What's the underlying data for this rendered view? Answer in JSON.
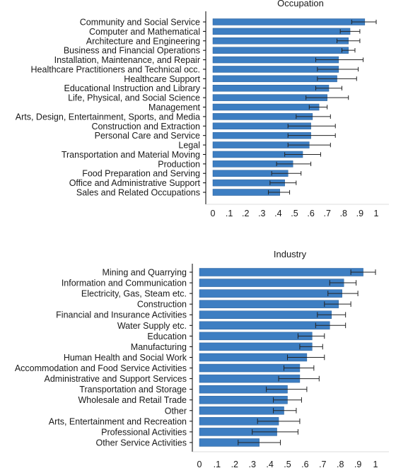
{
  "bar_color": "#3d7ec2",
  "chart_data": [
    {
      "type": "bar",
      "orientation": "horizontal",
      "title": "Occupation",
      "xlim": [
        0,
        1
      ],
      "xticks": [
        "0",
        ".1",
        ".2",
        ".3",
        ".4",
        ".5",
        ".6",
        ".7",
        ".8",
        ".9",
        "1"
      ],
      "categories": [
        "Community and Social Service",
        "Computer and Mathematical",
        "Architecture and Engineering",
        "Business and Financial Operations",
        "Installation, Maintenance, and Repair",
        "Healthcare Practitioners and Technical occ.",
        "Healthcare Support",
        "Educational Instruction and Library",
        "Life, Physical, and Social Science",
        "Management",
        "Arts, Design, Entertainment, Sports, and Media",
        "Construction and Extraction",
        "Personal Care and Service",
        "Legal",
        "Transportation and Material Moving",
        "Production",
        "Food Preparation and Serving",
        "Office and Administrative Support",
        "Sales and Related Occupations"
      ],
      "values": [
        0.93,
        0.84,
        0.83,
        0.83,
        0.77,
        0.77,
        0.76,
        0.71,
        0.7,
        0.65,
        0.61,
        0.6,
        0.6,
        0.59,
        0.55,
        0.49,
        0.46,
        0.44,
        0.41
      ],
      "err_low": [
        0.85,
        0.78,
        0.76,
        0.79,
        0.63,
        0.64,
        0.64,
        0.63,
        0.57,
        0.59,
        0.51,
        0.46,
        0.46,
        0.46,
        0.44,
        0.39,
        0.36,
        0.35,
        0.34
      ],
      "err_high": [
        1.0,
        0.9,
        0.9,
        0.87,
        0.92,
        0.89,
        0.88,
        0.79,
        0.83,
        0.7,
        0.72,
        0.75,
        0.75,
        0.72,
        0.66,
        0.6,
        0.54,
        0.51,
        0.47
      ],
      "grid": false,
      "legend": "none"
    },
    {
      "type": "bar",
      "orientation": "horizontal",
      "title": "Industry",
      "xlim": [
        0,
        1
      ],
      "xticks": [
        "0",
        ".1",
        ".2",
        ".3",
        ".4",
        ".5",
        ".6",
        ".7",
        ".8",
        ".9",
        "1"
      ],
      "categories": [
        "Mining and Quarrying",
        "Information and Communication",
        "Electricity, Gas, Steam etc.",
        "Construction",
        "Financial and Insurance Activities",
        "Water Supply etc.",
        "Education",
        "Manufacturing",
        "Human Health and Social Work",
        "Accommodation and Food Service Activities",
        "Administrative and Support Services",
        "Transportation and Storage",
        "Wholesale and Retail Trade",
        "Other",
        "Arts, Entertainment and Recreation",
        "Professional Activities",
        "Other Service Activities"
      ],
      "values": [
        0.93,
        0.82,
        0.81,
        0.79,
        0.75,
        0.74,
        0.64,
        0.64,
        0.61,
        0.57,
        0.57,
        0.5,
        0.5,
        0.48,
        0.45,
        0.44,
        0.34
      ],
      "err_low": [
        0.86,
        0.74,
        0.73,
        0.71,
        0.67,
        0.66,
        0.56,
        0.57,
        0.5,
        0.48,
        0.45,
        0.38,
        0.42,
        0.42,
        0.33,
        0.3,
        0.22
      ],
      "err_high": [
        1.0,
        0.89,
        0.9,
        0.86,
        0.83,
        0.83,
        0.71,
        0.7,
        0.71,
        0.65,
        0.68,
        0.61,
        0.58,
        0.55,
        0.57,
        0.56,
        0.46
      ],
      "grid": false,
      "legend": "none"
    }
  ]
}
